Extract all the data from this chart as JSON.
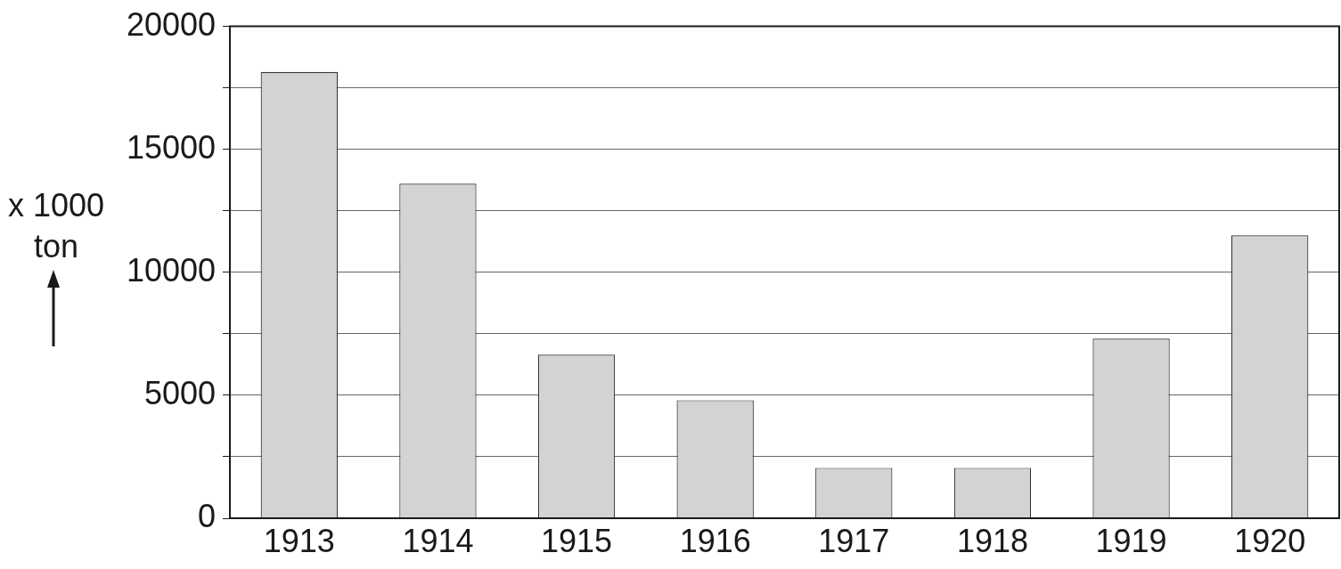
{
  "chart_data": {
    "type": "bar",
    "ylabel": "x 1000 ton",
    "categories": [
      "1913",
      "1914",
      "1915",
      "1916",
      "1917",
      "1918",
      "1919",
      "1920"
    ],
    "values": [
      18150,
      13600,
      6650,
      4800,
      2050,
      2050,
      7300,
      11500
    ],
    "color": "#d3d3d3",
    "ylim": [
      0,
      20000
    ],
    "yticks": [
      0,
      {
        "value": 2500,
        "label": null
      },
      5000,
      {
        "value": 7500,
        "label": null
      },
      10000,
      {
        "value": 12500,
        "label": null
      },
      15000,
      {
        "value": 17500,
        "label": null
      },
      20000
    ],
    "grid": "y",
    "legend": false
  }
}
